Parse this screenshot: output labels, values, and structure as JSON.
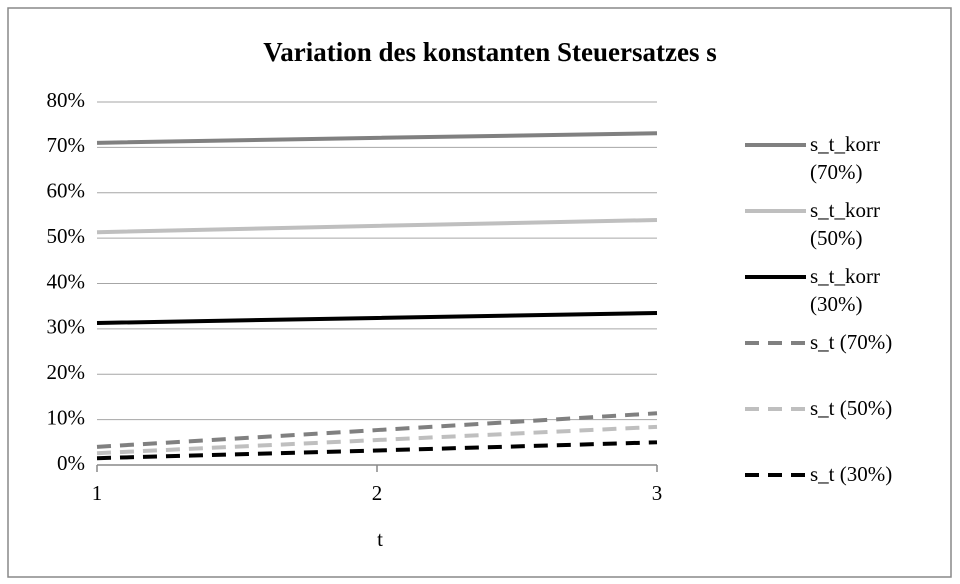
{
  "chart_data": {
    "type": "line",
    "title": "Variation des konstanten Steuersatzes s",
    "x_label": "t",
    "x": [
      1,
      2,
      3
    ],
    "xlim": [
      1,
      3
    ],
    "xticks": [
      1,
      2,
      3
    ],
    "ylim": [
      0,
      80
    ],
    "yticks": [
      {
        "value": 0,
        "label": "0%"
      },
      {
        "value": 10,
        "label": "10%"
      },
      {
        "value": 20,
        "label": "20%"
      },
      {
        "value": 30,
        "label": "30%"
      },
      {
        "value": 40,
        "label": "40%"
      },
      {
        "value": 50,
        "label": "50%"
      },
      {
        "value": 60,
        "label": "60%"
      },
      {
        "value": 70,
        "label": "70%"
      },
      {
        "value": 80,
        "label": "80%"
      }
    ],
    "grid": true,
    "legend": "right",
    "series": [
      {
        "name": "s_t_korr (70%)",
        "color": "#808080",
        "dashed": false,
        "values": [
          71,
          72.1,
          73.1
        ]
      },
      {
        "name": "s_t_korr (50%)",
        "color": "#bfbfbf",
        "dashed": false,
        "values": [
          51.3,
          52.7,
          54
        ]
      },
      {
        "name": "s_t_korr (30%)",
        "color": "#000000",
        "dashed": false,
        "values": [
          31.3,
          32.4,
          33.5
        ]
      },
      {
        "name": "s_t (70%)",
        "color": "#808080",
        "dashed": true,
        "values": [
          4,
          7.7,
          11.4
        ]
      },
      {
        "name": "s_t (50%)",
        "color": "#bfbfbf",
        "dashed": true,
        "values": [
          2.6,
          5.5,
          8.4
        ]
      },
      {
        "name": "s_t (30%)",
        "color": "#000000",
        "dashed": true,
        "values": [
          1.5,
          3.2,
          5
        ]
      }
    ]
  }
}
